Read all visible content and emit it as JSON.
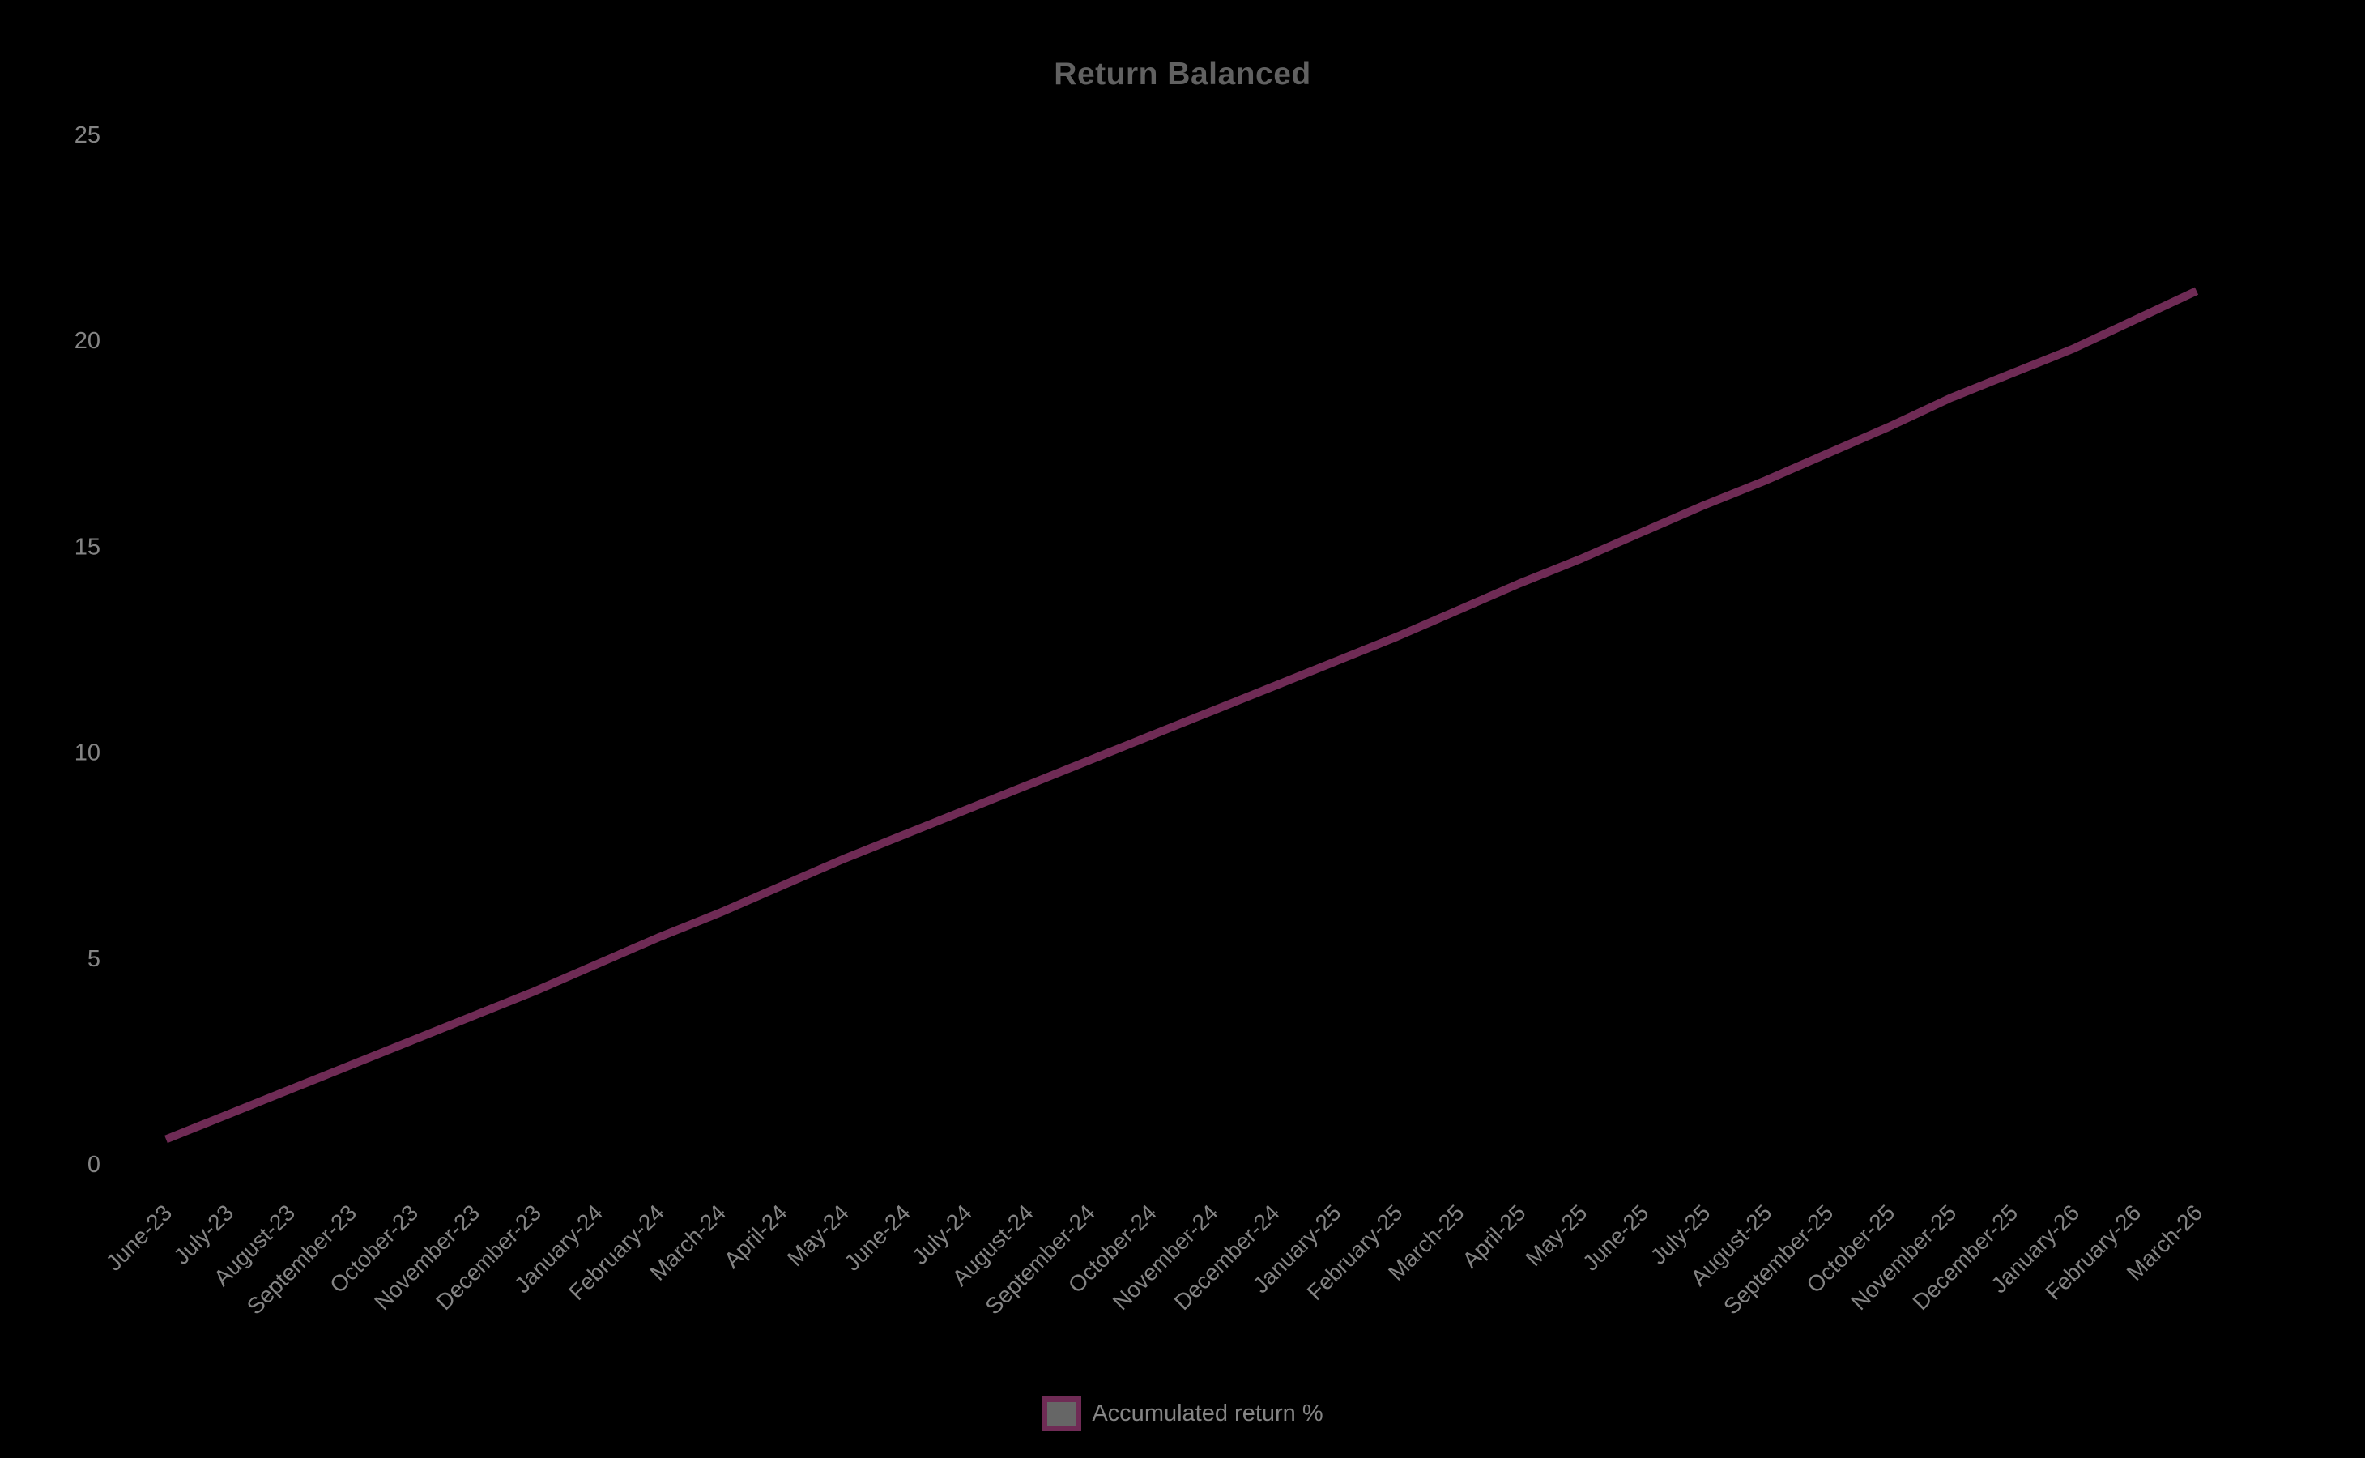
{
  "chart_data": {
    "type": "line",
    "title": "Return Balanced",
    "categories": [
      "June-23",
      "July-23",
      "August-23",
      "September-23",
      "October-23",
      "November-23",
      "December-23",
      "January-24",
      "February-24",
      "March-24",
      "April-24",
      "May-24",
      "June-24",
      "July-24",
      "August-24",
      "September-24",
      "October-24",
      "November-24",
      "December-24",
      "January-25",
      "February-25",
      "March-25",
      "April-25",
      "May-25",
      "June-25",
      "July-25",
      "August-25",
      "September-25",
      "October-25",
      "November-25",
      "December-25",
      "January-26",
      "February-26",
      "March-26"
    ],
    "series": [
      {
        "name": "Accumulated return %",
        "values": [
          0.6,
          1.2,
          1.8,
          2.4,
          3.0,
          3.6,
          4.2,
          4.85,
          5.5,
          6.1,
          6.75,
          7.4,
          8.0,
          8.6,
          9.2,
          9.8,
          10.4,
          11.0,
          11.6,
          12.2,
          12.8,
          13.45,
          14.1,
          14.7,
          15.35,
          16.0,
          16.6,
          17.25,
          17.9,
          18.6,
          19.2,
          19.8,
          20.5,
          21.2
        ]
      }
    ],
    "xlabel": "",
    "ylabel": "",
    "ylim": [
      0,
      25
    ],
    "yticks": [
      0,
      5,
      10,
      15,
      20,
      25
    ],
    "grid": false,
    "legend_position": "bottom",
    "x_label_rotation_deg": -45,
    "colors": {
      "background": "#000000",
      "line": "#6F2B55",
      "legend_fill": "#666666",
      "title": "#616161",
      "tick_label": "#848484",
      "legend_label": "#848484"
    }
  }
}
